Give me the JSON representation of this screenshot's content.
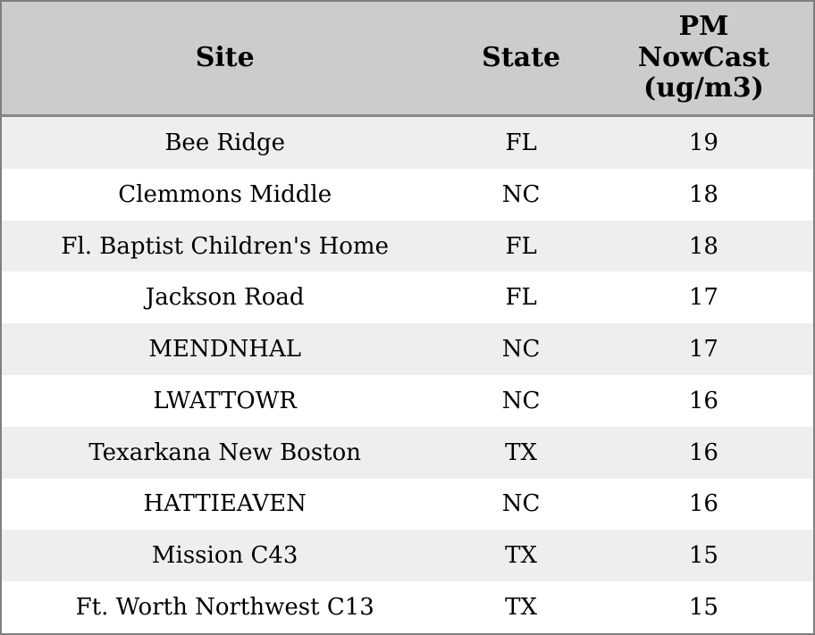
{
  "table": {
    "columns": [
      {
        "key": "site",
        "label": "Site"
      },
      {
        "key": "state",
        "label": "State"
      },
      {
        "key": "pm",
        "label": "PM\nNowCast\n(ug/m3)"
      }
    ],
    "rows": [
      {
        "site": "Bee Ridge",
        "state": "FL",
        "pm": "19"
      },
      {
        "site": "Clemmons Middle",
        "state": "NC",
        "pm": "18"
      },
      {
        "site": "Fl. Baptist Children's Home",
        "state": "FL",
        "pm": "18"
      },
      {
        "site": "Jackson Road",
        "state": "FL",
        "pm": "17"
      },
      {
        "site": "MENDNHAL",
        "state": "NC",
        "pm": "17"
      },
      {
        "site": "LWATTOWR",
        "state": "NC",
        "pm": "16"
      },
      {
        "site": "Texarkana New Boston",
        "state": "TX",
        "pm": "16"
      },
      {
        "site": "HATTIEAVEN",
        "state": "NC",
        "pm": "16"
      },
      {
        "site": "Mission C43",
        "state": "TX",
        "pm": "15"
      },
      {
        "site": "Ft. Worth Northwest C13",
        "state": "TX",
        "pm": "15"
      }
    ]
  },
  "colors": {
    "header_bg": "#cccccc",
    "row_alt_bg": "#eeeeee",
    "row_bg": "#ffffff",
    "outer_border": "#7f7f7f",
    "header_separator": "#888888",
    "text": "#000000"
  }
}
